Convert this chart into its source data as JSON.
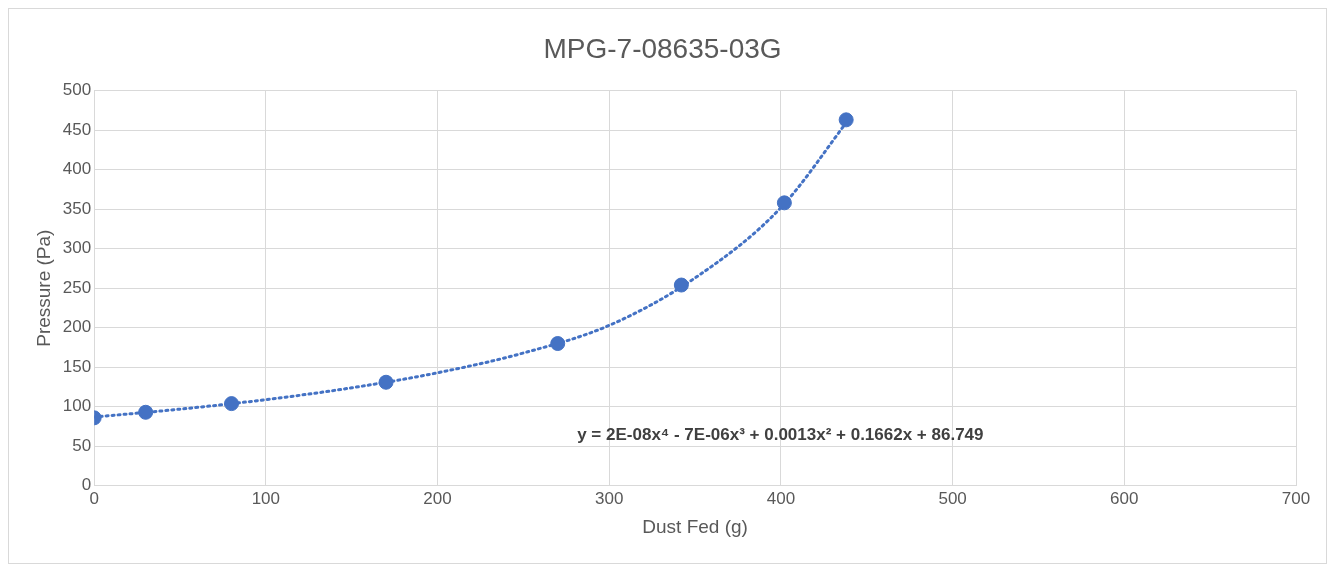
{
  "chart_data": {
    "type": "scatter",
    "title": "MPG-7-08635-03G",
    "xlabel": "Dust Fed (g)",
    "ylabel": "Pressure (Pa)",
    "xlim": [
      0,
      700
    ],
    "xticks": [
      0,
      100,
      200,
      300,
      400,
      500,
      600,
      700
    ],
    "ylim": [
      0,
      500
    ],
    "yticks": [
      0,
      50,
      100,
      150,
      200,
      250,
      300,
      350,
      400,
      450,
      500
    ],
    "grid": true,
    "legend": false,
    "marker": "circle",
    "series": [
      {
        "color": "#4472c4",
        "x": [
          0,
          30,
          80,
          170,
          270,
          342,
          402,
          438
        ],
        "values": [
          86,
          93,
          104,
          131,
          180,
          254,
          358,
          463
        ]
      },
      {
        "type": "line",
        "line_style": "dotted",
        "marker": "none",
        "color": "#4472c4",
        "x": [
          0,
          50,
          100,
          150,
          200,
          250,
          300,
          350,
          400,
          440
        ],
        "values": [
          87,
          97,
          109,
          124,
          143,
          168,
          203,
          263,
          352,
          465
        ]
      }
    ],
    "annotations": [
      "y = 2E-08x⁴ - 7E-06x³ + 0.0013x² + 0.1662x + 86.749"
    ]
  }
}
